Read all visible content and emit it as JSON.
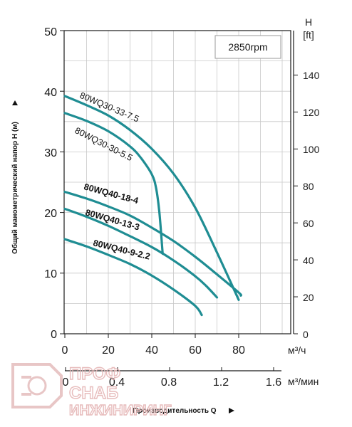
{
  "chart_data": {
    "type": "line",
    "annotation": "2850rpm",
    "ylabel": "Общий манометрический напор H (м)",
    "xlabel": "Производительность Q",
    "ylim": [
      0,
      50
    ],
    "xlim": [
      0,
      100
    ],
    "y_ticks": [
      "0",
      "10",
      "20",
      "30",
      "40",
      "50"
    ],
    "x_ticks": [
      "0",
      "20",
      "40",
      "60",
      "80"
    ],
    "x_unit": "м³/ч",
    "x2_ticks": [
      "0",
      "0.4",
      "0.8",
      "1.2",
      "1.6"
    ],
    "x2_unit": "м³/мин",
    "y2_title": "H",
    "y2_unit": "[ft]",
    "y2_ticks": [
      "0",
      "20",
      "40",
      "60",
      "80",
      "100",
      "120",
      "140"
    ],
    "grid": true,
    "series": [
      {
        "name": "80WQ30-33-7.5",
        "x": [
          0,
          10,
          20,
          30,
          40,
          50,
          60,
          70,
          80
        ],
        "y": [
          39.2,
          37.7,
          36.0,
          33.6,
          30.5,
          26.4,
          20.8,
          13.4,
          5.6
        ]
      },
      {
        "name": "80WQ30-30-5.5",
        "x": [
          0,
          10,
          20,
          30,
          35,
          40,
          42,
          43.5,
          45
        ],
        "y": [
          36.4,
          35.1,
          33.4,
          30.9,
          29.0,
          26.3,
          24.0,
          20.0,
          13.2
        ]
      },
      {
        "name": "80WQ40-18-4",
        "x": [
          0,
          10,
          20,
          30,
          40,
          50,
          60,
          70,
          80,
          81
        ],
        "y": [
          23.4,
          22.3,
          21.0,
          19.5,
          17.5,
          15.3,
          12.7,
          9.8,
          6.8,
          6.3
        ]
      },
      {
        "name": "80WQ40-13-3",
        "x": [
          0,
          10,
          20,
          30,
          40,
          50,
          60,
          65,
          70
        ],
        "y": [
          20.6,
          19.3,
          17.8,
          16.1,
          14.3,
          12.1,
          9.5,
          7.9,
          6.0
        ]
      },
      {
        "name": "80WQ40-9-2.2",
        "x": [
          0,
          10,
          20,
          30,
          40,
          50,
          60,
          63
        ],
        "y": [
          15.6,
          14.4,
          13.0,
          11.5,
          9.6,
          7.3,
          4.6,
          3.1
        ]
      }
    ],
    "line_color": "#1f8d93"
  },
  "watermark": {
    "logo_name": "profsnab-gear-logo",
    "line1": "ПРОФ",
    "line2": "СНАБ",
    "line3": "ИНЖИНИРИНГ"
  }
}
